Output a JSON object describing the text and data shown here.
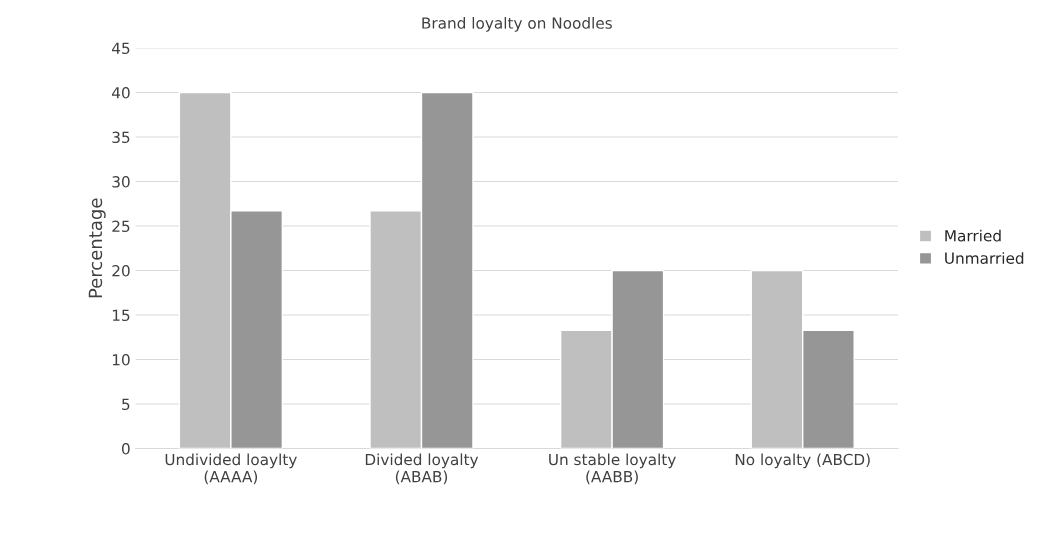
{
  "chart_data": {
    "type": "bar",
    "title": "Brand loyalty on Noodles",
    "ylabel": "Percentage",
    "categories": [
      "Undivided loaylty\n(AAAA)",
      "Divided loyalty\n(ABAB)",
      "Un stable loyalty\n(AABB)",
      "No loyalty (ABCD)"
    ],
    "series": [
      {
        "name": "Married",
        "color": "#bfbfbf",
        "values": [
          40,
          26.7,
          13.3,
          20
        ]
      },
      {
        "name": "Unmarried",
        "color": "#969696",
        "values": [
          26.7,
          40,
          20,
          13.3
        ]
      }
    ],
    "ylim": [
      0,
      45
    ],
    "yticks": [
      0,
      5,
      10,
      15,
      20,
      25,
      30,
      35,
      40,
      45
    ],
    "grid": "y",
    "legend": "right"
  }
}
